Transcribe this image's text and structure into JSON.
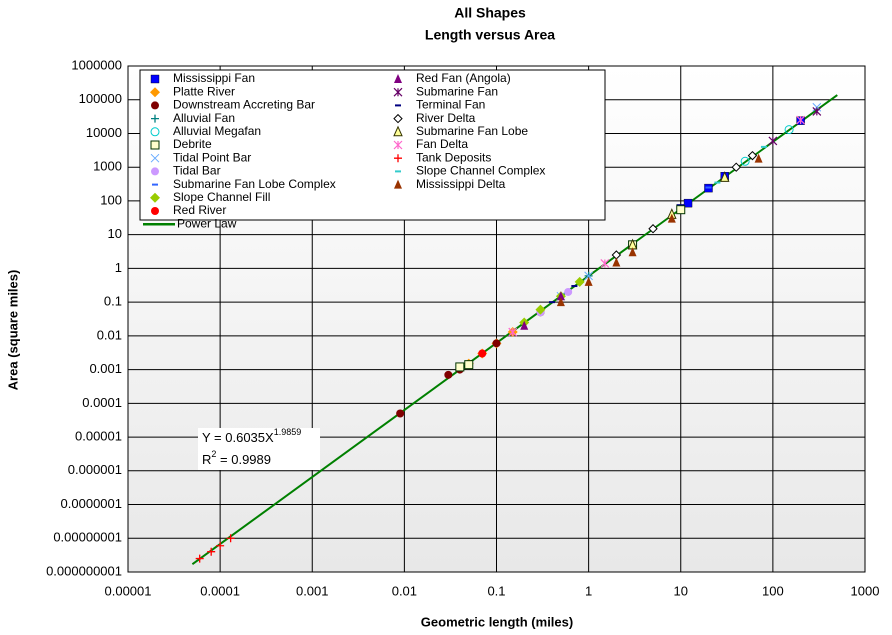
{
  "chart_data": {
    "type": "scatter",
    "title": "All Shapes",
    "subtitle": "Length versus Area",
    "x_label": "Geometric length (miles)",
    "y_label": "Area (square miles)",
    "log_x": true,
    "log_y": true,
    "grid": true,
    "xlim": [
      1e-05,
      1000
    ],
    "ylim": [
      1e-09,
      1000000
    ],
    "xticks": [
      1e-05,
      0.0001,
      0.001,
      0.01,
      0.1,
      1,
      10,
      100,
      1000
    ],
    "yticks": [
      {
        "value": 1e-09,
        "label": "0.000000001"
      },
      {
        "value": 1e-08,
        "label": "0.00000001"
      },
      {
        "value": 1e-07,
        "label": "0.0000001"
      },
      1e-06,
      1e-05,
      0.0001,
      0.001,
      0.01,
      0.1,
      1,
      10,
      100,
      1000,
      10000,
      100000,
      1000000
    ],
    "annotations": {
      "equation": "Y = 0.6035X",
      "exponent": "1.9859",
      "r": "R",
      "r_power": "2",
      "r_value": " = 0.9989"
    },
    "series": [
      {
        "name": "Mississippi Fan",
        "color": "#0000ff",
        "marker": "square",
        "x": [
          10,
          12,
          20,
          30,
          200
        ],
        "values": [
          60,
          86,
          240,
          540,
          24000
        ]
      },
      {
        "name": "Platte River",
        "color": "#ff9900",
        "marker": "diamond",
        "x": [
          0.05,
          0.07,
          0.1,
          0.15
        ],
        "values": [
          0.0015,
          0.003,
          0.006,
          0.013
        ]
      },
      {
        "name": "Downstream Accreting Bar",
        "color": "#800000",
        "marker": "circle",
        "x": [
          0.009,
          0.03,
          0.04,
          0.1,
          0.3
        ],
        "values": [
          5e-05,
          0.0007,
          0.001,
          0.006,
          0.05
        ]
      },
      {
        "name": "Alluvial Fan",
        "color": "#008080",
        "marker": "plus",
        "x": [
          1,
          2,
          5
        ],
        "values": [
          0.6,
          2.5,
          15
        ]
      },
      {
        "name": "Alluvial Megafan",
        "color": "#00cccc",
        "marker": "open-circle",
        "x": [
          50,
          150
        ],
        "values": [
          1500,
          13000
        ]
      },
      {
        "name": "Debrite",
        "color": "#003300",
        "marker": "open-square",
        "x": [
          0.04,
          0.05,
          3,
          10
        ],
        "values": [
          0.0012,
          0.0014,
          5,
          55
        ]
      },
      {
        "name": "Tidal Point Bar",
        "color": "#66aaff",
        "marker": "x",
        "x": [
          0.5,
          1,
          300
        ],
        "values": [
          0.15,
          0.6,
          60000
        ]
      },
      {
        "name": "Tidal Bar",
        "color": "#cc99ff",
        "marker": "circle",
        "x": [
          0.3,
          0.6
        ],
        "values": [
          0.05,
          0.2
        ]
      },
      {
        "name": "Submarine Fan Lobe Complex",
        "color": "#3366ff",
        "marker": "dash",
        "x": [
          20,
          40
        ],
        "values": [
          250,
          1000
        ]
      },
      {
        "name": "Slope Channel Fill",
        "color": "#99cc00",
        "marker": "diamond",
        "x": [
          0.2,
          0.3,
          0.5,
          0.8
        ],
        "values": [
          0.025,
          0.06,
          0.15,
          0.4
        ]
      },
      {
        "name": "Red River",
        "color": "#ff0000",
        "marker": "circle",
        "x": [
          0.07
        ],
        "values": [
          0.003
        ]
      },
      {
        "name": "Red Fan (Angola)",
        "color": "#800080",
        "marker": "triangle",
        "x": [
          0.2,
          0.5
        ],
        "values": [
          0.02,
          0.15
        ]
      },
      {
        "name": "Submarine Fan",
        "color": "#660066",
        "marker": "star",
        "x": [
          100,
          300
        ],
        "values": [
          6000,
          45000
        ]
      },
      {
        "name": "Terminal Fan",
        "color": "#000080",
        "marker": "dash",
        "x": [
          0.4,
          0.7
        ],
        "values": [
          0.1,
          0.3
        ]
      },
      {
        "name": "River Delta",
        "color": "#000000",
        "marker": "open-diamond",
        "x": [
          2,
          5,
          40,
          60
        ],
        "values": [
          2.5,
          15,
          1000,
          2200
        ]
      },
      {
        "name": "Submarine Fan Lobe",
        "color": "#333300",
        "marker": "open-triangle",
        "x": [
          3,
          8,
          30
        ],
        "values": [
          5,
          40,
          500
        ]
      },
      {
        "name": "Fan Delta",
        "color": "#ff66cc",
        "marker": "star",
        "x": [
          0.15,
          1.5,
          200
        ],
        "values": [
          0.013,
          1.4,
          25000
        ]
      },
      {
        "name": "Tank Deposits",
        "color": "#ff0000",
        "marker": "plus",
        "x": [
          6e-05,
          8e-05,
          0.0001,
          0.00013
        ],
        "values": [
          2.5e-09,
          4e-09,
          6e-09,
          1e-08
        ]
      },
      {
        "name": "Slope Channel Complex",
        "color": "#33cccc",
        "marker": "dash",
        "x": [
          25,
          80
        ],
        "values": [
          350,
          4000
        ]
      },
      {
        "name": "Mississippi Delta",
        "color": "#993300",
        "marker": "triangle",
        "x": [
          0.5,
          1,
          2,
          3,
          8,
          70
        ],
        "values": [
          0.1,
          0.4,
          1.5,
          3,
          30,
          1800
        ]
      },
      {
        "name": "Power Law",
        "color": "#008000",
        "marker": "line",
        "x": [
          5e-05,
          500
        ],
        "values": [
          1.7e-09,
          138000
        ]
      }
    ]
  }
}
